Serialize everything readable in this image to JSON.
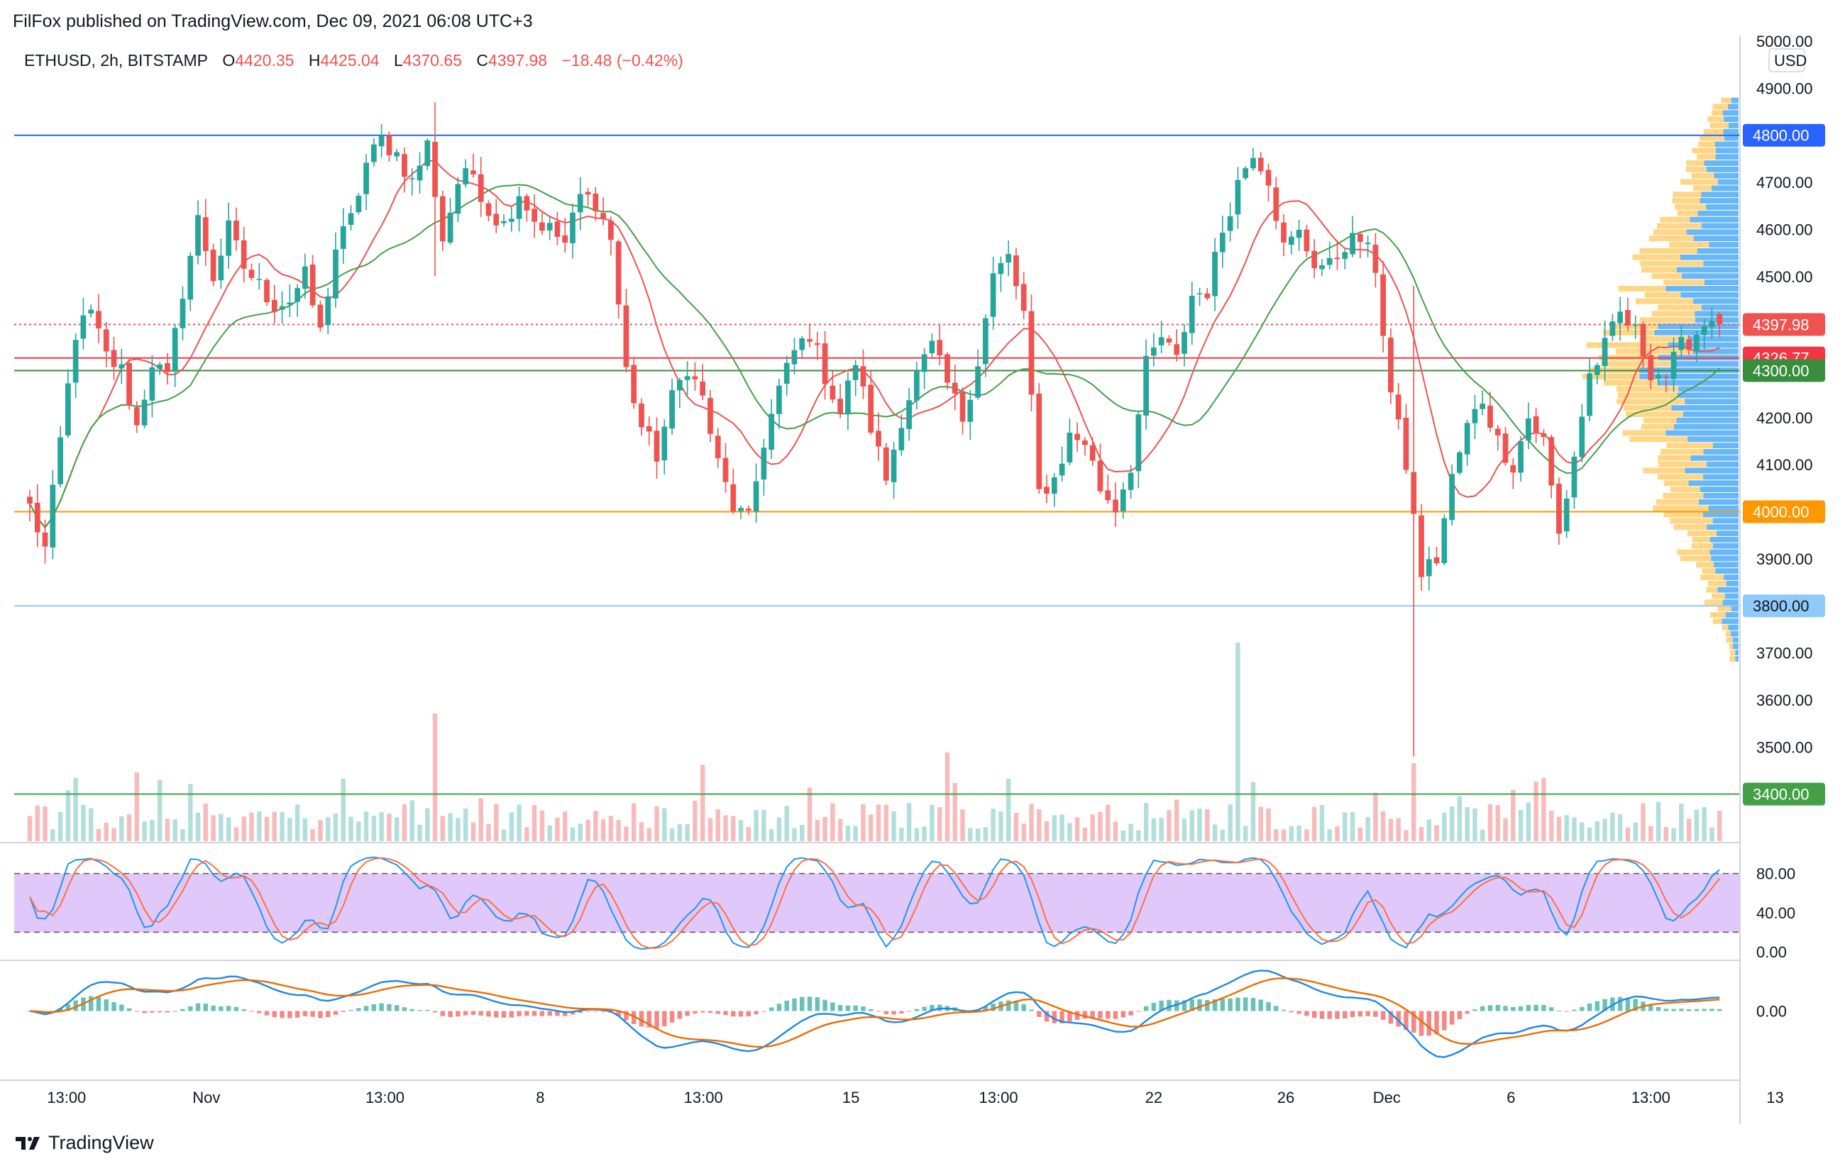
{
  "header": {
    "publish_note": "FilFox published on TradingView.com, Dec 09, 2021 06:08 UTC+3",
    "symbol": "ETHUSD, 2h, BITSTAMP",
    "ohlc": {
      "o_label": "O",
      "o_value": "4420.35",
      "h_label": "H",
      "h_value": "4425.04",
      "l_label": "L",
      "l_value": "4370.65",
      "c_label": "C",
      "c_value": "4397.98",
      "change": "−18.48 (−0.42%)"
    }
  },
  "footer": {
    "brand": "TradingView"
  },
  "colors": {
    "up": "#26a69a",
    "down": "#ef5350",
    "ma_fast": "#ef5350",
    "ma_slow": "#43a047",
    "stoch_k": "#2196f3",
    "stoch_d": "#ff7043",
    "stoch_band": "#e1c8fa",
    "macd": "#1e88e5",
    "signal": "#ef6c00",
    "vp_up": "#ffcc66",
    "vp_down": "#42a5f5",
    "lvl_4800": "#2962ff",
    "lvl_4326": "#f23645",
    "lvl_4300": "#388e3c",
    "lvl_4000": "#ff9800",
    "lvl_3800": "#90caf9",
    "lvl_3400": "#43a047"
  },
  "chart_data": {
    "type": "candlestick",
    "currency": "USD",
    "price_axis": {
      "range": [
        3300,
        5000
      ],
      "ticks": [
        "5000.00",
        "4900.00",
        "4800.00",
        "4700.00",
        "4600.00",
        "4500.00",
        "4400.00",
        "4300.00",
        "4200.00",
        "4100.00",
        "4000.00",
        "3900.00",
        "3800.00",
        "3700.00",
        "3600.00",
        "3500.00",
        "3400.00"
      ]
    },
    "time_axis": [
      "13:00",
      "Nov",
      "13:00",
      "8",
      "13:00",
      "15",
      "13:00",
      "22",
      "26",
      "Dec",
      "6",
      "13:00",
      "13"
    ],
    "price_path": [
      [
        0,
        4010
      ],
      [
        2,
        3920
      ],
      [
        4,
        4150
      ],
      [
        6,
        4380
      ],
      [
        8,
        4420
      ],
      [
        10,
        4330
      ],
      [
        12,
        4300
      ],
      [
        14,
        4180
      ],
      [
        16,
        4320
      ],
      [
        18,
        4280
      ],
      [
        20,
        4470
      ],
      [
        22,
        4620
      ],
      [
        24,
        4500
      ],
      [
        26,
        4600
      ],
      [
        28,
        4520
      ],
      [
        30,
        4480
      ],
      [
        32,
        4440
      ],
      [
        34,
        4450
      ],
      [
        36,
        4500
      ],
      [
        38,
        4380
      ],
      [
        40,
        4560
      ],
      [
        42,
        4620
      ],
      [
        44,
        4740
      ],
      [
        46,
        4790
      ],
      [
        48,
        4760
      ],
      [
        50,
        4700
      ],
      [
        52,
        4780
      ],
      [
        54,
        4580
      ],
      [
        56,
        4700
      ],
      [
        58,
        4720
      ],
      [
        60,
        4640
      ],
      [
        62,
        4610
      ],
      [
        64,
        4680
      ],
      [
        66,
        4620
      ],
      [
        68,
        4600
      ],
      [
        70,
        4570
      ],
      [
        72,
        4670
      ],
      [
        74,
        4660
      ],
      [
        76,
        4580
      ],
      [
        78,
        4300
      ],
      [
        80,
        4180
      ],
      [
        82,
        4120
      ],
      [
        84,
        4240
      ],
      [
        86,
        4310
      ],
      [
        88,
        4240
      ],
      [
        90,
        4100
      ],
      [
        92,
        4010
      ],
      [
        94,
        3980
      ],
      [
        96,
        4150
      ],
      [
        98,
        4260
      ],
      [
        100,
        4340
      ],
      [
        102,
        4380
      ],
      [
        104,
        4290
      ],
      [
        106,
        4210
      ],
      [
        108,
        4320
      ],
      [
        110,
        4180
      ],
      [
        112,
        4070
      ],
      [
        114,
        4200
      ],
      [
        116,
        4290
      ],
      [
        118,
        4350
      ],
      [
        120,
        4270
      ],
      [
        122,
        4200
      ],
      [
        124,
        4320
      ],
      [
        126,
        4500
      ],
      [
        128,
        4540
      ],
      [
        130,
        4420
      ],
      [
        132,
        4040
      ],
      [
        134,
        4070
      ],
      [
        136,
        4160
      ],
      [
        138,
        4150
      ],
      [
        140,
        4050
      ],
      [
        142,
        4010
      ],
      [
        144,
        4100
      ],
      [
        146,
        4310
      ],
      [
        148,
        4370
      ],
      [
        150,
        4320
      ],
      [
        152,
        4460
      ],
      [
        154,
        4470
      ],
      [
        156,
        4600
      ],
      [
        158,
        4700
      ],
      [
        160,
        4770
      ],
      [
        162,
        4710
      ],
      [
        164,
        4560
      ],
      [
        166,
        4590
      ],
      [
        168,
        4530
      ],
      [
        170,
        4520
      ],
      [
        172,
        4570
      ],
      [
        174,
        4580
      ],
      [
        176,
        4520
      ],
      [
        178,
        4250
      ],
      [
        180,
        4100
      ],
      [
        182,
        3870
      ],
      [
        184,
        3900
      ],
      [
        186,
        4070
      ],
      [
        188,
        4180
      ],
      [
        190,
        4240
      ],
      [
        192,
        4150
      ],
      [
        194,
        4100
      ],
      [
        196,
        4200
      ],
      [
        198,
        4150
      ],
      [
        200,
        3950
      ],
      [
        202,
        4120
      ],
      [
        204,
        4290
      ],
      [
        206,
        4350
      ],
      [
        208,
        4420
      ],
      [
        210,
        4380
      ],
      [
        212,
        4300
      ],
      [
        214,
        4290
      ],
      [
        216,
        4350
      ],
      [
        218,
        4380
      ],
      [
        220,
        4420
      ],
      [
        221,
        4398
      ]
    ],
    "wicks": [
      {
        "index": 53,
        "high": 4870,
        "low": 4500
      },
      {
        "index": 181,
        "high": 4480,
        "low": 3480
      },
      {
        "index": 2,
        "high": 3960,
        "low": 3890
      },
      {
        "index": 221,
        "high": 4425.04,
        "low": 4370.65
      }
    ],
    "last_candle": {
      "open": 4420.35,
      "high": 4425.04,
      "low": 4370.65,
      "close": 4397.98
    },
    "moving_averages": [
      {
        "type": "fast",
        "color": "#ef5350"
      },
      {
        "type": "slow",
        "color": "#43a047"
      }
    ],
    "horizontal_levels": [
      {
        "price": 4800,
        "label": "4800.00",
        "color": "#2962ff"
      },
      {
        "price": 4397.98,
        "label": "4397.98",
        "color": "#ef5350",
        "style": "dotted"
      },
      {
        "price": 4326.77,
        "label": "4326.77",
        "color": "#f23645"
      },
      {
        "price": 4300,
        "label": "4300.00",
        "color": "#388e3c"
      },
      {
        "price": 4000,
        "label": "4000.00",
        "color": "#ff9800"
      },
      {
        "price": 3800,
        "label": "3800.00",
        "color": "#90caf9"
      },
      {
        "price": 3400,
        "label": "3400.00",
        "color": "#43a047"
      }
    ],
    "volume_profile": {
      "poc_price": 4320,
      "range": [
        3680,
        4880
      ]
    },
    "stochastic": {
      "ticks": [
        "80.00",
        "40.00",
        "0.00"
      ],
      "range": [
        0,
        100
      ],
      "upper_band": 80,
      "lower_band": 20
    },
    "macd": {
      "ticks": [
        "0.00"
      ]
    }
  }
}
